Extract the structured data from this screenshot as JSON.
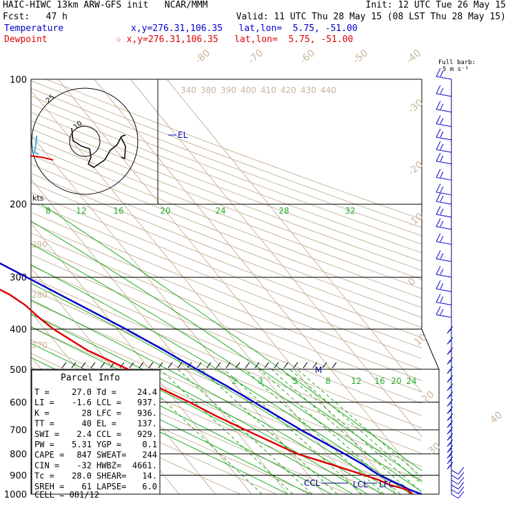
{
  "header": {
    "line1_left": "HAIC-HIWC 13km ARW-GFS init   NCAR/MMM",
    "line1_right": "Init: 12 UTC Tue 26 May 15",
    "line2_left": "Fcst:   47 h",
    "line2_right": "Valid: 11 UTC Thu 28 May 15 (08 LST Thu 28 May 15)",
    "temp_label": "Temperature",
    "temp_info": "x,y=276.31,106.35   lat,lon=  5.75, -51.00",
    "dew_label": "Dewpoint",
    "dew_info": "☆ x,y=276.31,106.35   lat,lon=  5.75, -51.00",
    "barb_title_1": "Full barb:",
    "barb_title_2": "5 m s⁻¹",
    "colors": {
      "temperature": "#0000cc",
      "dewpoint": "#dd0000",
      "dry_adiabat": "#c8b49b",
      "moist_adiabat": "#22aa22",
      "mixing_ratio": "#22aa22"
    }
  },
  "chart_data": {
    "type": "line",
    "subtype": "skew-T log-p sounding",
    "pressure_axis": {
      "ticks": [
        100,
        200,
        300,
        400,
        500,
        600,
        700,
        800,
        900,
        1000
      ],
      "labels": [
        "100",
        "200",
        "300",
        "400",
        "500",
        "600",
        "700",
        "800",
        "900",
        "1000"
      ],
      "scale": "log",
      "range": [
        1000,
        100
      ]
    },
    "isotherm_labels": [
      {
        "value": -80,
        "label": "-80"
      },
      {
        "value": -70,
        "label": "-70"
      },
      {
        "value": -60,
        "label": "-60"
      },
      {
        "value": -50,
        "label": "-50"
      },
      {
        "value": -40,
        "label": "-40"
      },
      {
        "value": -30,
        "label": "-30"
      },
      {
        "value": -20,
        "label": "-20"
      },
      {
        "value": -10,
        "label": "-10"
      },
      {
        "value": 0,
        "label": "0"
      },
      {
        "value": 10,
        "label": "10"
      },
      {
        "value": 20,
        "label": "20"
      },
      {
        "value": 30,
        "label": "30"
      },
      {
        "value": 40,
        "label": "40"
      }
    ],
    "theta_labels_upper": [
      "340",
      "380",
      "390",
      "400",
      "410",
      "420",
      "430",
      "440"
    ],
    "theta_labels_left": [
      "290",
      "280",
      "270"
    ],
    "mixing_ratio_labels_upper": [
      "8",
      "12",
      "16",
      "20",
      "24",
      "28",
      "32"
    ],
    "mixing_ratio_labels_lower": [
      "2",
      "3",
      "5",
      "8",
      "12",
      "16",
      "20",
      "24"
    ],
    "series": [
      {
        "name": "Temperature",
        "color": "#0000cc",
        "p": [
          1000,
          975,
          950,
          925,
          900,
          875,
          850,
          800,
          750,
          700,
          650,
          600,
          550,
          500,
          450,
          400,
          350,
          300,
          250,
          200,
          175,
          150,
          140,
          125,
          110,
          100
        ],
        "t": [
          27.0,
          24.6,
          23.2,
          21.4,
          19.6,
          18.5,
          17.6,
          14.8,
          11.6,
          8.1,
          4.9,
          1.4,
          -2.4,
          -7.0,
          -11.8,
          -17.6,
          -24.9,
          -33.3,
          -43.3,
          -55.3,
          -62.8,
          -70.6,
          -74.2,
          -79.6,
          -82.3,
          -79.2
        ]
      },
      {
        "name": "Dewpoint",
        "color": "#dd0000",
        "p": [
          1000,
          975,
          950,
          925,
          900,
          850,
          800,
          750,
          700,
          650,
          600,
          550,
          500,
          450,
          400,
          375,
          350,
          330,
          300,
          275,
          250,
          225,
          200,
          185,
          170,
          150,
          125,
          110,
          100
        ],
        "t": [
          24.4,
          24.0,
          20.3,
          18.4,
          15.5,
          9.0,
          1.8,
          -2.6,
          -7.2,
          -12.0,
          -16.5,
          -22.0,
          -26.0,
          -33.0,
          -37.6,
          -39.0,
          -40.0,
          -42.0,
          -47.3,
          -53.0,
          -55.0,
          -57.0,
          -66.5,
          -67.0,
          -72.0,
          -80.0,
          -89.0,
          -95.0,
          -99.0
        ]
      }
    ],
    "annotations": [
      {
        "label": "EL",
        "p": 137
      },
      {
        "label": "CCL",
        "p": 929
      },
      {
        "label": "LCL",
        "p": 937
      },
      {
        "label": "LFC",
        "p": 936
      },
      {
        "label": "M",
        "p": 500
      }
    ],
    "hodograph": {
      "label_kts": "kts",
      "ring_labels": [
        "25",
        "10"
      ]
    },
    "wind_profile": {
      "p": [
        100,
        110,
        120,
        130,
        140,
        150,
        160,
        175,
        190,
        200,
        215,
        230,
        250,
        275,
        300,
        325,
        350,
        375,
        400,
        425,
        450,
        475,
        500,
        525,
        550,
        575,
        600,
        625,
        650,
        675,
        700,
        725,
        750,
        775,
        800,
        825,
        850,
        875,
        900,
        925,
        950,
        975,
        1000
      ],
      "count": 43
    }
  },
  "parcel_info": {
    "title": "Parcel Info",
    "rows": [
      [
        "T   =",
        "27.0",
        "Td =",
        "24.4"
      ],
      [
        "LI  =",
        "-1.6",
        "LCL =",
        "937."
      ],
      [
        "K   =",
        "28",
        "LFC =",
        "936."
      ],
      [
        "TT  =",
        "40",
        "EL  =",
        "137."
      ],
      [
        "SWI =",
        "2.4",
        "CCL =",
        "929."
      ],
      [
        "PW  =",
        "5.31",
        "YGP =",
        "0.1"
      ],
      [
        "CAPE =",
        "847",
        "SWEAT=",
        "244"
      ],
      [
        "CIN =",
        "-32",
        "HWBZ=",
        "4661."
      ],
      [
        "Tc  =",
        "28.0",
        "SHEAR=",
        "14."
      ],
      [
        "SREH =",
        "61",
        "LAPSE=",
        "6.0"
      ]
    ],
    "cell_label": "CELL =",
    "cell_value": "081/12"
  }
}
